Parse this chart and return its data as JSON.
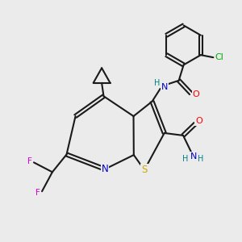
{
  "background_color": "#ebebeb",
  "bond_color": "#1a1a1a",
  "atom_colors": {
    "N": "#0000cc",
    "S": "#ccaa00",
    "O": "#ff0000",
    "F": "#dd00dd",
    "Cl": "#00aa00",
    "C": "#1a1a1a",
    "H": "#1a1a1a"
  },
  "figsize": [
    3.0,
    3.0
  ],
  "dpi": 100
}
